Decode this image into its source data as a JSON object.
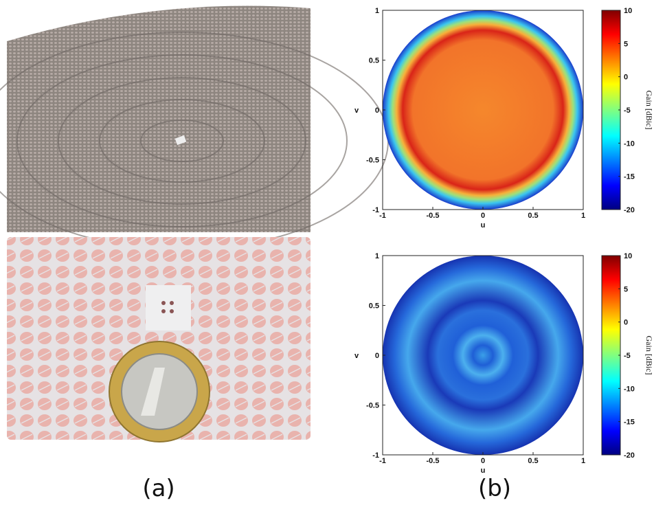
{
  "captions": [
    "(a)",
    "(b)"
  ],
  "chart_data": [
    {
      "type": "heatmap",
      "xlabel": "u",
      "ylabel": "v",
      "xlim": [
        -1,
        1
      ],
      "ylim": [
        -1,
        1
      ],
      "xticks": [
        -1,
        -0.5,
        0,
        0.5,
        1
      ],
      "yticks": [
        -1,
        -0.5,
        0,
        0.5,
        1
      ],
      "colorbar": {
        "label": "Gain [dBic]",
        "lim": [
          -20,
          10
        ],
        "ticks": [
          10,
          5,
          0,
          -5,
          -10,
          -15,
          -20
        ]
      }
    },
    {
      "type": "heatmap",
      "xlabel": "u",
      "ylabel": "v",
      "xlim": [
        -1,
        1
      ],
      "ylim": [
        -1,
        1
      ],
      "xticks": [
        -1,
        -0.5,
        0,
        0.5,
        1
      ],
      "yticks": [
        -1,
        -0.5,
        0,
        0.5,
        1
      ],
      "colorbar": {
        "label": "Gain [dBic]",
        "lim": [
          -20,
          10
        ],
        "ticks": [
          10,
          5,
          0,
          -5,
          -10,
          -15,
          -20
        ]
      }
    }
  ]
}
